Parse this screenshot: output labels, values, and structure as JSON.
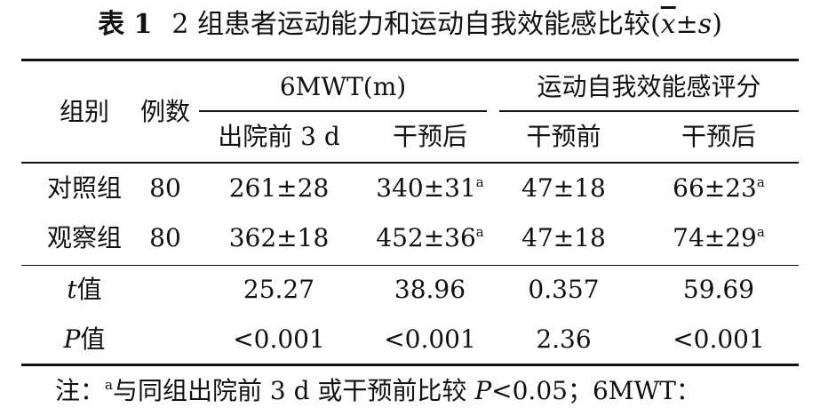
{
  "title": {
    "label": "表 1",
    "text": "2 组患者运动能力和运动自我效能感比较(",
    "xbar": "x",
    "pm": "±",
    "s": "s",
    "close": ")"
  },
  "header": {
    "group": "组别",
    "count": "例数",
    "mwt": "6MWT(m)",
    "efficacy": "运动自我效能感评分",
    "sub": [
      "出院前 3 d",
      "干预后",
      "干预前",
      "干预后"
    ]
  },
  "rows": [
    {
      "group": "对照组",
      "count": "80",
      "v1": "261±28",
      "v2": "340±31",
      "v2_sup": "a",
      "v3": "47±18",
      "v4": "66±23",
      "v4_sup": "a"
    },
    {
      "group": "观察组",
      "count": "80",
      "v1": "362±18",
      "v2": "452±36",
      "v2_sup": "a",
      "v3": "47±18",
      "v4": "74±29",
      "v4_sup": "a"
    }
  ],
  "stats": [
    {
      "sym": "t",
      "suffix": "值",
      "values": [
        "25.27",
        "38.96",
        "0.357",
        "59.69"
      ]
    },
    {
      "sym": "P",
      "suffix": "值",
      "values": [
        "<0.001",
        "<0.001",
        "2.36",
        "<0.001"
      ]
    }
  ],
  "note": {
    "prefix": "注：",
    "sup": "a",
    "text1": "与同组出院前 3 d 或干预前比较 ",
    "p": "P",
    "text2": "<0.05；6MWT："
  }
}
